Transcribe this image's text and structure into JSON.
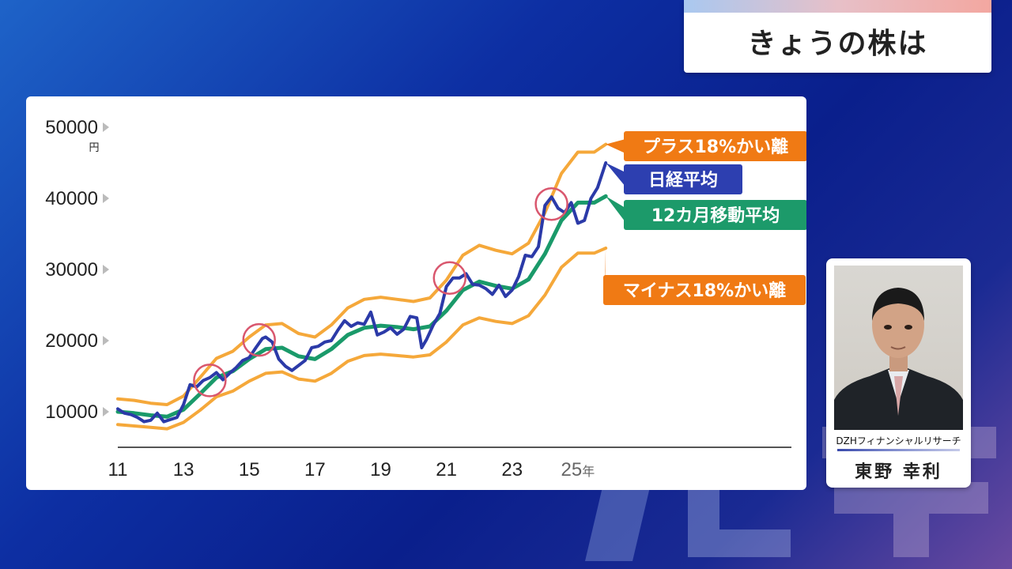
{
  "header": {
    "title": "きょうの株は"
  },
  "profile": {
    "affiliation": "DZHフィナンシャルリサーチ",
    "name": "東野 幸利"
  },
  "chart_data": {
    "type": "line",
    "ylim": [
      5000,
      51000
    ],
    "xlim": [
      2011,
      2031.5
    ],
    "y_ticks": [
      10000,
      20000,
      30000,
      40000,
      50000
    ],
    "y_tick_labels": [
      "10000",
      "20000",
      "30000",
      "40000",
      "50000"
    ],
    "y_unit": "円",
    "x_ticks": [
      2011,
      2013,
      2015,
      2017,
      2019,
      2021,
      2023,
      2025
    ],
    "x_tick_labels": [
      "11",
      "13",
      "15",
      "17",
      "19",
      "21",
      "23",
      "25"
    ],
    "x_last_suffix": "年",
    "colors": {
      "nikkei": "#2b3aa8",
      "ma": "#1a9a6a",
      "plus": "#f5a83a",
      "minus": "#f5a83a",
      "label_orange": "#f07a14",
      "label_blue": "#2d3fb0",
      "label_green": "#1c9a6a",
      "circle": "#d9576e"
    },
    "series": [
      {
        "key": "plus",
        "name": "プラス18%かい離",
        "x": [
          2011.0,
          2011.5,
          2012.0,
          2012.5,
          2013.0,
          2013.5,
          2014.0,
          2014.5,
          2015.0,
          2015.5,
          2016.0,
          2016.5,
          2017.0,
          2017.5,
          2018.0,
          2018.5,
          2019.0,
          2019.5,
          2020.0,
          2020.5,
          2021.0,
          2021.5,
          2022.0,
          2022.5,
          2023.0,
          2023.5,
          2024.0,
          2024.5,
          2025.0,
          2025.5,
          2025.85
        ],
        "values": [
          11800,
          11600,
          11200,
          11000,
          12200,
          14800,
          17500,
          18500,
          20500,
          22200,
          22400,
          21000,
          20500,
          22200,
          24600,
          25800,
          26100,
          25800,
          25500,
          26000,
          28500,
          32000,
          33400,
          32700,
          32200,
          33700,
          38000,
          43500,
          46500,
          46500,
          47600
        ]
      },
      {
        "key": "nikkei",
        "name": "日経平均",
        "x": [
          2011.0,
          2011.2,
          2011.4,
          2011.6,
          2011.8,
          2012.0,
          2012.2,
          2012.4,
          2012.6,
          2012.8,
          2013.0,
          2013.2,
          2013.4,
          2013.6,
          2013.8,
          2014.0,
          2014.2,
          2014.4,
          2014.6,
          2014.8,
          2015.0,
          2015.2,
          2015.4,
          2015.5,
          2015.7,
          2015.9,
          2016.1,
          2016.3,
          2016.5,
          2016.7,
          2016.9,
          2017.1,
          2017.3,
          2017.5,
          2017.7,
          2017.9,
          2018.1,
          2018.3,
          2018.5,
          2018.7,
          2018.9,
          2019.1,
          2019.3,
          2019.5,
          2019.7,
          2019.9,
          2020.1,
          2020.25,
          2020.4,
          2020.6,
          2020.8,
          2021.0,
          2021.2,
          2021.4,
          2021.6,
          2021.8,
          2022.0,
          2022.2,
          2022.4,
          2022.6,
          2022.8,
          2023.0,
          2023.2,
          2023.4,
          2023.6,
          2023.8,
          2024.0,
          2024.2,
          2024.4,
          2024.6,
          2024.8,
          2025.0,
          2025.2,
          2025.4,
          2025.6,
          2025.85
        ],
        "values": [
          10400,
          9800,
          9600,
          9200,
          8600,
          8800,
          9800,
          8600,
          8900,
          9200,
          11000,
          13800,
          13500,
          14400,
          14800,
          15500,
          14500,
          15400,
          16200,
          17200,
          17600,
          19000,
          20300,
          20500,
          19800,
          17400,
          16400,
          15800,
          16500,
          17200,
          19000,
          19200,
          19800,
          20000,
          21500,
          22800,
          22000,
          22500,
          22300,
          24000,
          20800,
          21200,
          21800,
          20900,
          21600,
          23400,
          23200,
          19000,
          20200,
          22200,
          23800,
          27600,
          28800,
          28800,
          29400,
          27900,
          27800,
          27300,
          26500,
          27800,
          26200,
          27100,
          29000,
          32000,
          31800,
          33200,
          39000,
          40200,
          38600,
          38000,
          39400,
          36500,
          36900,
          40000,
          41500,
          45000
        ]
      },
      {
        "key": "ma",
        "name": "12カ月移動平均",
        "x": [
          2011.0,
          2011.5,
          2012.0,
          2012.5,
          2013.0,
          2013.5,
          2014.0,
          2014.5,
          2015.0,
          2015.5,
          2016.0,
          2016.5,
          2017.0,
          2017.5,
          2018.0,
          2018.5,
          2019.0,
          2019.5,
          2020.0,
          2020.5,
          2021.0,
          2021.5,
          2022.0,
          2022.5,
          2023.0,
          2023.5,
          2024.0,
          2024.5,
          2025.0,
          2025.5,
          2025.85
        ],
        "values": [
          10000,
          9800,
          9500,
          9300,
          10300,
          12500,
          14800,
          15700,
          17400,
          18800,
          19000,
          17800,
          17400,
          18800,
          20800,
          21800,
          22100,
          21900,
          21600,
          22000,
          24200,
          27100,
          28300,
          27700,
          27300,
          28600,
          32200,
          36900,
          39400,
          39400,
          40300
        ]
      },
      {
        "key": "minus",
        "name": "マイナス18%かい離",
        "x": [
          2011.0,
          2011.5,
          2012.0,
          2012.5,
          2013.0,
          2013.5,
          2014.0,
          2014.5,
          2015.0,
          2015.5,
          2016.0,
          2016.5,
          2017.0,
          2017.5,
          2018.0,
          2018.5,
          2019.0,
          2019.5,
          2020.0,
          2020.5,
          2021.0,
          2021.5,
          2022.0,
          2022.5,
          2023.0,
          2023.5,
          2024.0,
          2024.5,
          2025.0,
          2025.5,
          2025.85
        ],
        "values": [
          8200,
          8000,
          7800,
          7600,
          8500,
          10200,
          12100,
          12900,
          14300,
          15400,
          15600,
          14600,
          14300,
          15400,
          17100,
          17900,
          18100,
          17900,
          17700,
          18000,
          19800,
          22200,
          23200,
          22700,
          22400,
          23500,
          26400,
          30300,
          32300,
          32300,
          33000
        ]
      }
    ],
    "highlights": [
      {
        "x": 2013.8,
        "y": 14400
      },
      {
        "x": 2015.3,
        "y": 20100
      },
      {
        "x": 2021.1,
        "y": 28800
      },
      {
        "x": 2024.2,
        "y": 39200
      }
    ],
    "labels": [
      {
        "text": "プラス18%かい離",
        "series": "plus",
        "color_key": "label_orange"
      },
      {
        "text": "日経平均",
        "series": "nikkei",
        "color_key": "label_blue"
      },
      {
        "text": "12カ月移動平均",
        "series": "ma",
        "color_key": "label_green"
      },
      {
        "text": "マイナス18%かい離",
        "series": "minus",
        "color_key": "label_orange"
      }
    ]
  }
}
